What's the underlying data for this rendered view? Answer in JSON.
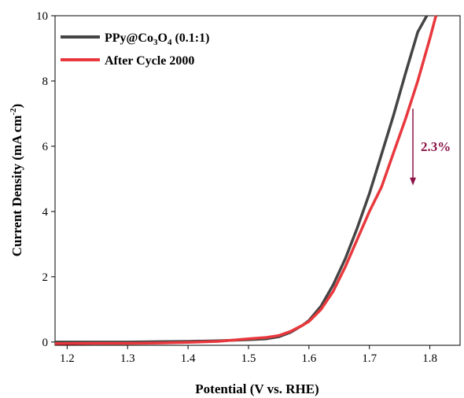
{
  "chart_data": {
    "type": "line",
    "title": "",
    "xlabel": "Potential (V vs. RHE)",
    "ylabel": "Current Density (mA cm",
    "ylabel_sup": "-2",
    "ylabel_end": ")",
    "xlim": [
      1.18,
      1.85
    ],
    "ylim": [
      -0.1,
      10
    ],
    "x_ticks": [
      1.2,
      1.3,
      1.4,
      1.5,
      1.6,
      1.7,
      1.8
    ],
    "x_tick_labels": [
      "1.2",
      "1.3",
      "1.4",
      "1.5",
      "1.6",
      "1.7",
      "1.8"
    ],
    "y_ticks": [
      0,
      2,
      4,
      6,
      8,
      10
    ],
    "y_tick_labels": [
      "0",
      "2",
      "4",
      "6",
      "8",
      "10"
    ],
    "legend_position": "top-left",
    "grid": false,
    "series": [
      {
        "legend_prefix": "PPy@Co",
        "legend_sub1": "3",
        "legend_mid": "O",
        "legend_sub2": "4",
        "legend_suffix": " (0.1:1)",
        "color": "#444444",
        "x": [
          1.18,
          1.25,
          1.3,
          1.35,
          1.4,
          1.45,
          1.5,
          1.53,
          1.55,
          1.57,
          1.59,
          1.6,
          1.62,
          1.64,
          1.66,
          1.68,
          1.7,
          1.72,
          1.74,
          1.76,
          1.78,
          1.795
        ],
        "y": [
          0.0,
          0.0,
          0.0,
          0.01,
          0.02,
          0.04,
          0.07,
          0.1,
          0.16,
          0.3,
          0.52,
          0.66,
          1.1,
          1.75,
          2.55,
          3.5,
          4.55,
          5.75,
          6.95,
          8.25,
          9.5,
          10.0
        ]
      },
      {
        "name": "After Cycle 2000",
        "color": "#e8383d",
        "x": [
          1.18,
          1.25,
          1.3,
          1.35,
          1.4,
          1.45,
          1.5,
          1.53,
          1.55,
          1.57,
          1.59,
          1.6,
          1.62,
          1.64,
          1.66,
          1.68,
          1.7,
          1.72,
          1.74,
          1.76,
          1.78,
          1.8,
          1.81
        ],
        "y": [
          -0.05,
          -0.04,
          -0.04,
          -0.03,
          -0.01,
          0.02,
          0.1,
          0.14,
          0.2,
          0.33,
          0.52,
          0.63,
          1.0,
          1.55,
          2.3,
          3.15,
          4.0,
          4.75,
          5.8,
          6.85,
          8.0,
          9.3,
          10.0
        ]
      }
    ],
    "annotation": {
      "text": "2.3%",
      "color": "#8b1446",
      "arrow_x": 1.772,
      "arrow_y_from": 7.15,
      "arrow_y_to": 4.8,
      "label_x": 1.785,
      "label_y": 6.0
    }
  }
}
